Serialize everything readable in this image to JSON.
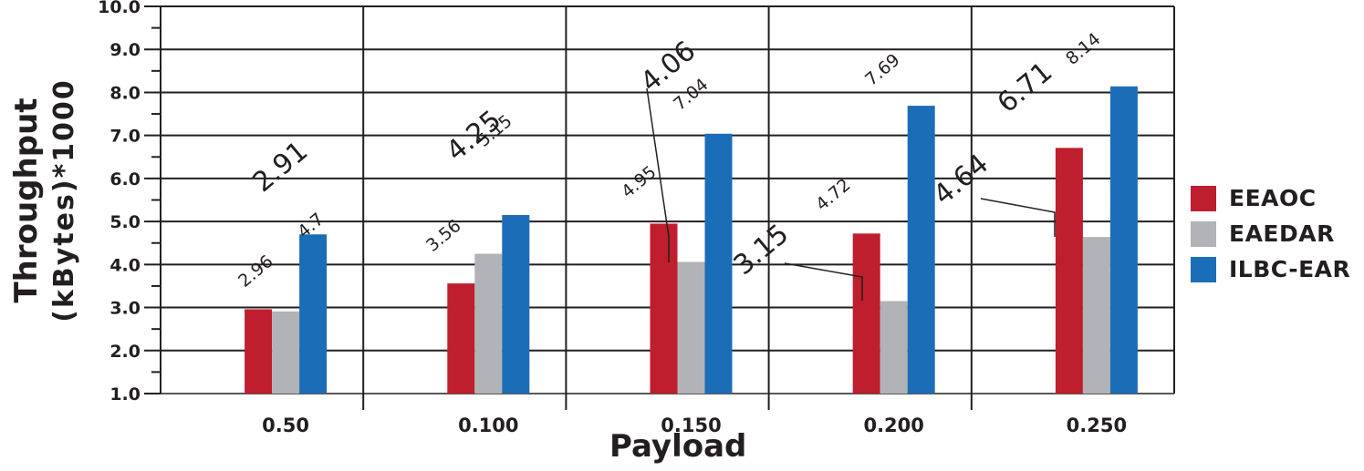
{
  "chart_data": {
    "type": "bar",
    "title": "",
    "xlabel": "Payload",
    "ylabel_line1": "Throughput",
    "ylabel_line2": "(kBytes)*1000",
    "ylim": [
      1.0,
      10.0
    ],
    "yticks": [
      "1.0",
      "2.0",
      "3.0",
      "4.0",
      "5.0",
      "6.0",
      "7.0",
      "8.0",
      "9.0",
      "10.0"
    ],
    "grid": true,
    "legend_position": "right",
    "categories": [
      "0.50",
      "0.100",
      "0.150",
      "0.200",
      "0.250"
    ],
    "series": [
      {
        "name": "EEAOC",
        "color": "#be1e2d",
        "values": [
          2.96,
          3.56,
          4.95,
          4.72,
          6.71
        ]
      },
      {
        "name": "EAEDAR",
        "color": "#b1b3b6",
        "values": [
          2.91,
          4.25,
          4.06,
          3.15,
          4.64
        ]
      },
      {
        "name": "ILBC-EAR",
        "color": "#1c6db8",
        "values": [
          4.7,
          5.15,
          7.04,
          7.69,
          8.14
        ]
      }
    ],
    "data_labels": {
      "EEAOC": [
        "2.96",
        "3.56",
        "4.95",
        "4.72",
        "6.71"
      ],
      "EAEDAR": [
        "2.91",
        "4.25",
        "4.06",
        "3.15",
        "4.64"
      ],
      "ILBC-EAR": [
        "4.7",
        "5.15",
        "7.04",
        "7.69",
        "8.14"
      ]
    }
  },
  "legend": {
    "items": [
      {
        "label": "EEAOC",
        "color": "#be1e2d"
      },
      {
        "label": "EAEDAR",
        "color": "#b1b3b6"
      },
      {
        "label": "ILBC-EAR",
        "color": "#1c6db8"
      }
    ]
  },
  "axes": {
    "x_title": "Payload",
    "y_title_line1": "Throughput",
    "y_title_line2": "(kBytes)*1000"
  }
}
